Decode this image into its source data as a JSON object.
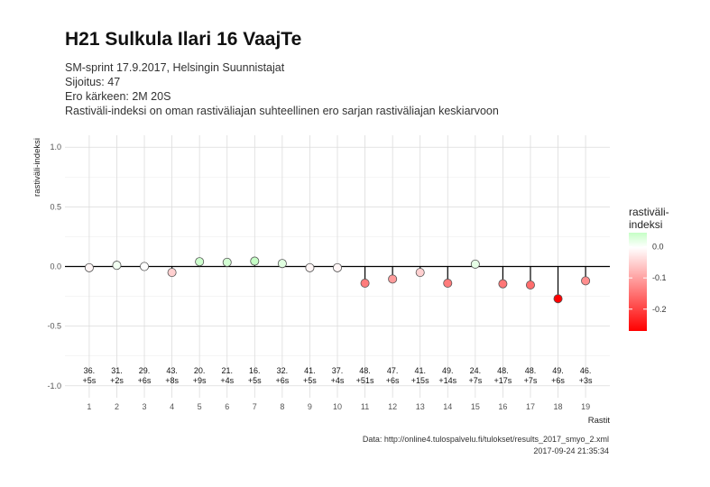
{
  "header": {
    "title": "H21 Sulkula Ilari 16 VaajTe",
    "subtitle_lines": [
      "SM-sprint 17.9.2017, Helsingin Suunnistajat",
      "Sijoitus: 47",
      "Ero kärkeen: 2M 20S",
      "Rastiväli-indeksi on oman rastiväliajan suhteellinen ero sarjan rastiväliajan keskiarvoon"
    ]
  },
  "caption": {
    "source": "Data: http://online4.tulospalvelu.fi/tulokset/results_2017_smyo_2.xml",
    "timestamp": "2017-09-24 21:35:34"
  },
  "chart_data": {
    "type": "scatter",
    "xlabel": "Rastit",
    "ylabel": "rastiväli-indeksi",
    "ylim": [
      -1.0,
      1.0
    ],
    "yticks": [
      "1.0",
      "0.5",
      "0.0",
      "-0.5",
      "-1.0"
    ],
    "ytick_values": [
      1.0,
      0.5,
      0.0,
      -0.5,
      -1.0
    ],
    "x": [
      1,
      2,
      3,
      4,
      5,
      6,
      7,
      8,
      9,
      10,
      11,
      12,
      13,
      14,
      15,
      16,
      17,
      18,
      19
    ],
    "values": [
      -0.01,
      0.01,
      0.0,
      -0.05,
      0.04,
      0.035,
      0.045,
      0.025,
      -0.01,
      -0.01,
      -0.14,
      -0.105,
      -0.05,
      -0.14,
      0.02,
      -0.145,
      -0.155,
      -0.27,
      -0.12
    ],
    "point_labels": [
      [
        "36.",
        "+5s"
      ],
      [
        "31.",
        "+2s"
      ],
      [
        "29.",
        "+6s"
      ],
      [
        "43.",
        "+8s"
      ],
      [
        "20.",
        "+9s"
      ],
      [
        "21.",
        "+4s"
      ],
      [
        "16.",
        "+5s"
      ],
      [
        "32.",
        "+6s"
      ],
      [
        "41.",
        "+5s"
      ],
      [
        "37.",
        "+4s"
      ],
      [
        "48.",
        "+51s"
      ],
      [
        "47.",
        "+6s"
      ],
      [
        "41.",
        "+15s"
      ],
      [
        "49.",
        "+14s"
      ],
      [
        "24.",
        "+7s"
      ],
      [
        "48.",
        "+17s"
      ],
      [
        "48.",
        "+7s"
      ],
      [
        "49.",
        "+6s"
      ],
      [
        "46.",
        "+3s"
      ]
    ],
    "grid": true,
    "legend": {
      "title": [
        "rastiväli-",
        "indeksi"
      ],
      "placement": "right",
      "ticks": [
        "0.0",
        "-0.1",
        "-0.2"
      ],
      "tick_values": [
        0.0,
        -0.1,
        -0.2
      ],
      "range": [
        -0.27,
        0.045
      ],
      "color_low": "#ff0000",
      "color_mid": "#ffffff",
      "color_high": "#00ff00"
    }
  }
}
